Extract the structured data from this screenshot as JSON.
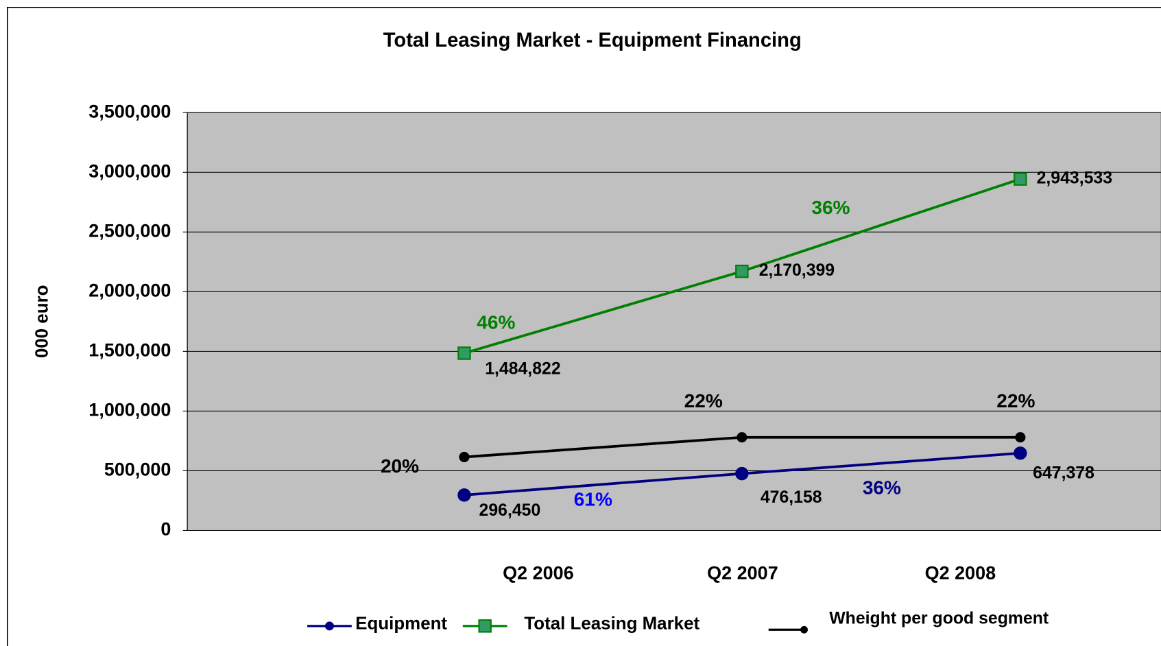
{
  "chart_data": {
    "type": "line",
    "title": "Total Leasing Market - Equipment Financing",
    "y_label": "000 euro",
    "categories": [
      "Q2 2006",
      "Q2 2007",
      "Q2 2008"
    ],
    "series": [
      {
        "name": "Equipment",
        "color": "#000080",
        "marker": "circle",
        "values": [
          296450,
          476158,
          647378
        ],
        "value_labels": [
          "296,450",
          "476,158",
          "647,378"
        ]
      },
      {
        "name": "Total Leasing Market",
        "color": "#008000",
        "marker": "square",
        "values": [
          1484822,
          2170399,
          2943533
        ],
        "value_labels": [
          "1,484,822",
          "2,170,399",
          "2,943,533"
        ]
      },
      {
        "name": "Wheight per good segment",
        "color": "#000000",
        "marker": "dot",
        "values": [
          615000,
          780000,
          780000
        ]
      }
    ],
    "annotations": [
      {
        "text": "46%",
        "color": "#008000"
      },
      {
        "text": "36%",
        "color": "#008000"
      },
      {
        "text": "61%",
        "color": "#0000ff"
      },
      {
        "text": "36%",
        "color": "#000080"
      },
      {
        "text": "20%",
        "color": "#000000"
      },
      {
        "text": "22%",
        "color": "#000000"
      },
      {
        "text": "22%",
        "color": "#000000"
      }
    ],
    "ylim": [
      0,
      3500000
    ],
    "yticks": [
      0,
      {
        "value": 500000,
        "label": "500,000"
      },
      {
        "value": 1000000,
        "label": "1,000,000"
      },
      {
        "value": 1500000,
        "label": "1,500,000"
      },
      {
        "value": 2000000,
        "label": "2,000,000"
      },
      {
        "value": 2500000,
        "label": "2,500,000"
      },
      {
        "value": 3000000,
        "label": "3,000,000"
      },
      {
        "value": 3500000,
        "label": "3,500,000"
      }
    ],
    "grid": true,
    "plot_background": "#c0c0c0"
  }
}
